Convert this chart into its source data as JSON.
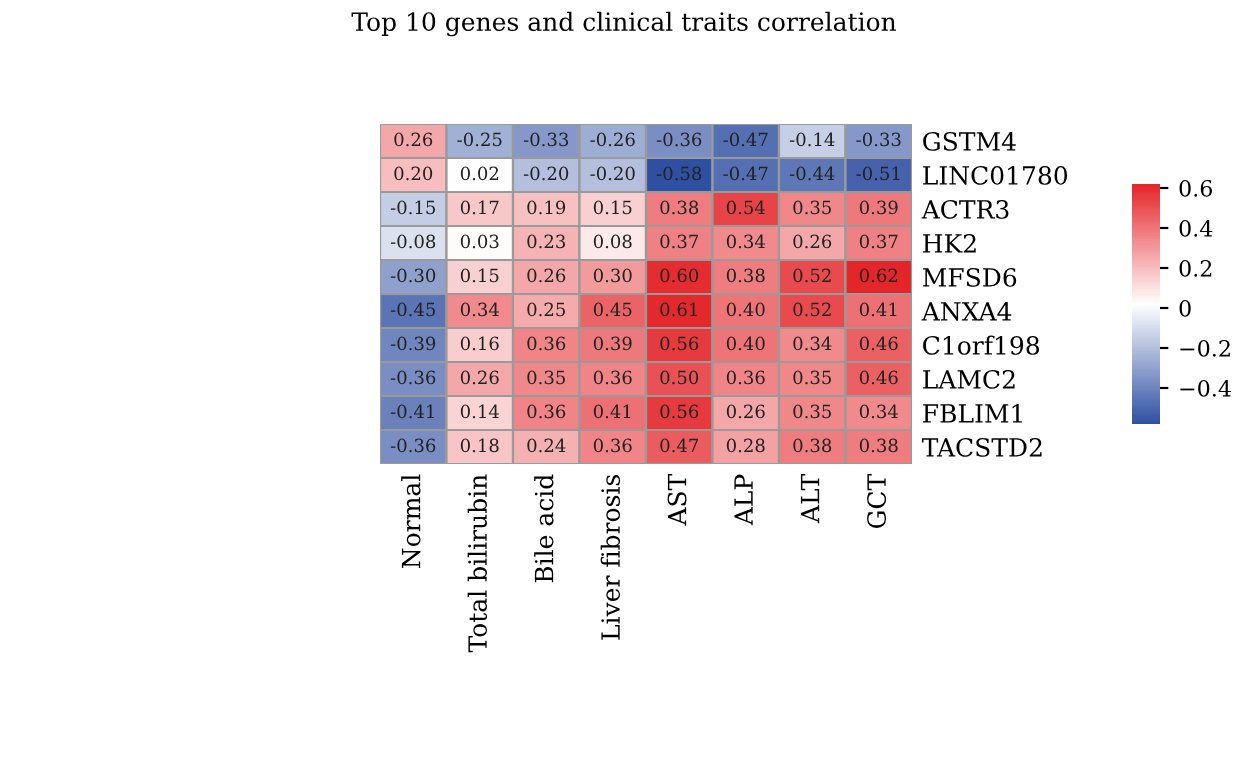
{
  "chart_data": {
    "type": "heatmap",
    "title": "Top 10 genes and clinical traits correlation",
    "categories": [
      "Normal",
      "Total bilirubin",
      "Bile acid",
      "Liver fibrosis",
      "AST",
      "ALP",
      "ALT",
      "GCT"
    ],
    "y_categories": [
      "GSTM4",
      "LINC01780",
      "ACTR3",
      "HK2",
      "MFSD6",
      "ANXA4",
      "C1orf198",
      "LAMC2",
      "FBLIM1",
      "TACSTD2"
    ],
    "cells": [
      [
        0.26,
        -0.25,
        -0.33,
        -0.26,
        -0.36,
        -0.47,
        -0.14,
        -0.33
      ],
      [
        0.2,
        0.02,
        -0.2,
        -0.2,
        -0.58,
        -0.47,
        -0.44,
        -0.51
      ],
      [
        -0.15,
        0.17,
        0.19,
        0.15,
        0.38,
        0.54,
        0.35,
        0.39
      ],
      [
        -0.08,
        0.03,
        0.23,
        0.08,
        0.37,
        0.34,
        0.26,
        0.37
      ],
      [
        -0.3,
        0.15,
        0.26,
        0.3,
        0.6,
        0.38,
        0.52,
        0.62
      ],
      [
        -0.45,
        0.34,
        0.25,
        0.45,
        0.61,
        0.4,
        0.52,
        0.41
      ],
      [
        -0.39,
        0.16,
        0.36,
        0.39,
        0.56,
        0.4,
        0.34,
        0.46
      ],
      [
        -0.36,
        0.26,
        0.35,
        0.36,
        0.5,
        0.36,
        0.35,
        0.46
      ],
      [
        -0.41,
        0.14,
        0.36,
        0.41,
        0.56,
        0.26,
        0.35,
        0.34
      ],
      [
        -0.36,
        0.18,
        0.24,
        0.36,
        0.47,
        0.28,
        0.38,
        0.38
      ]
    ],
    "cell_labels": [
      [
        "0.26",
        "-0.25",
        "-0.33",
        "-0.26",
        "-0.36",
        "-0.47",
        "-0.14",
        "-0.33"
      ],
      [
        "0.20",
        "0.02",
        "-0.20",
        "-0.20",
        "-0.58",
        "-0.47",
        "-0.44",
        "-0.51"
      ],
      [
        "-0.15",
        "0.17",
        "0.19",
        "0.15",
        "0.38",
        "0.54",
        "0.35",
        "0.39"
      ],
      [
        "-0.08",
        "0.03",
        "0.23",
        "0.08",
        "0.37",
        "0.34",
        "0.26",
        "0.37"
      ],
      [
        "-0.30",
        "0.15",
        "0.26",
        "0.30",
        "0.60",
        "0.38",
        "0.52",
        "0.62"
      ],
      [
        "-0.45",
        "0.34",
        "0.25",
        "0.45",
        "0.61",
        "0.40",
        "0.52",
        "0.41"
      ],
      [
        "-0.39",
        "0.16",
        "0.36",
        "0.39",
        "0.56",
        "0.40",
        "0.34",
        "0.46"
      ],
      [
        "-0.36",
        "0.26",
        "0.35",
        "0.36",
        "0.50",
        "0.36",
        "0.35",
        "0.46"
      ],
      [
        "-0.41",
        "0.14",
        "0.36",
        "0.41",
        "0.56",
        "0.26",
        "0.35",
        "0.34"
      ],
      [
        "-0.36",
        "0.18",
        "0.24",
        "0.36",
        "0.47",
        "0.28",
        "0.38",
        "0.38"
      ]
    ],
    "colors": [
      "#2f4fa2",
      "#ffffff",
      "#e4262a"
    ],
    "clim": [
      -0.58,
      0.62
    ],
    "cticks": [
      {
        "value": -0.4,
        "label": "−0.4"
      },
      {
        "value": -0.2,
        "label": "−0.2"
      },
      {
        "value": 0,
        "label": "0"
      },
      {
        "value": 0.2,
        "label": "0.2"
      },
      {
        "value": 0.4,
        "label": "0.4"
      },
      {
        "value": 0.6,
        "label": "0.6"
      }
    ]
  }
}
